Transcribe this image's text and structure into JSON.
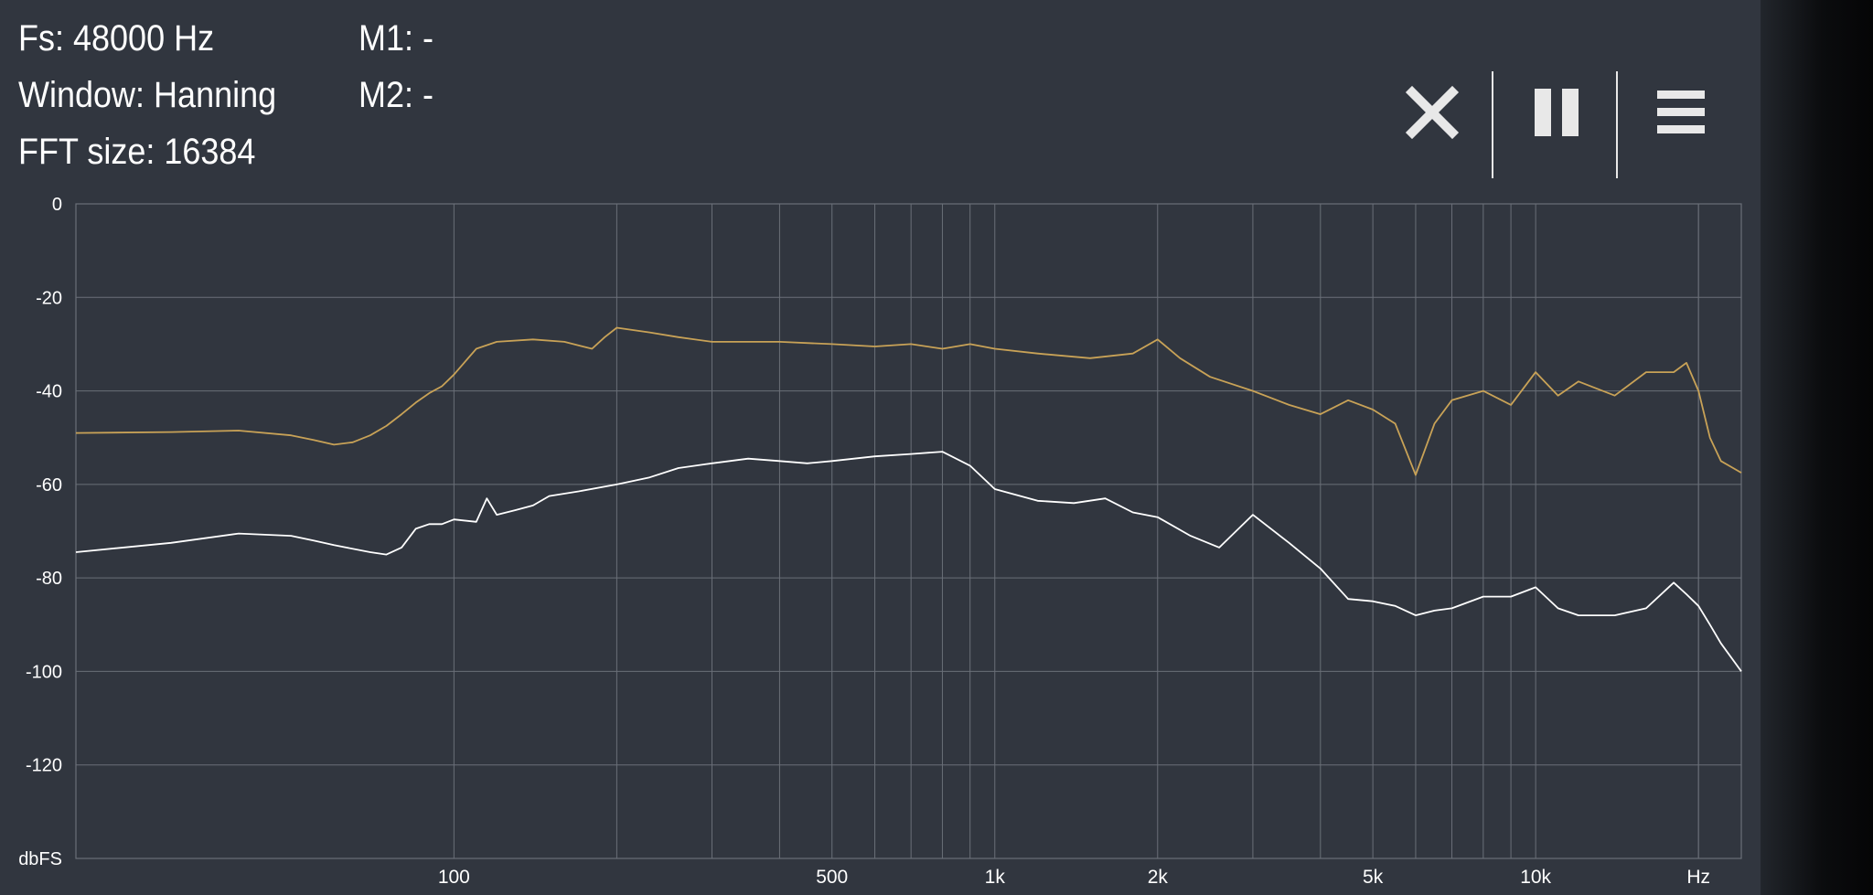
{
  "header": {
    "fs": "Fs: 48000 Hz",
    "window": "Window: Hanning",
    "fft_size": "FFT size: 16384",
    "m1": "M1: -",
    "m2": "M2: -"
  },
  "toolbar": {
    "close_icon": "close-icon",
    "pause_icon": "pause-icon",
    "menu_icon": "menu-icon"
  },
  "colors": {
    "background": "#31363f",
    "grid": "#6a6f78",
    "series_peak": "#c8a257",
    "series_current": "#ffffff"
  },
  "chart_data": {
    "type": "line",
    "x_scale": "log",
    "xlim": [
      20,
      24000
    ],
    "ylim": [
      -140,
      0
    ],
    "ylabel": "dbFS",
    "y_ticks": [
      "0",
      "-20",
      "-40",
      "-60",
      "-80",
      "-100",
      "-120",
      "dbFS"
    ],
    "x_ticks": [
      "100",
      "500",
      "1k",
      "2k",
      "5k",
      "10k",
      "Hz"
    ],
    "grid": true,
    "series": [
      {
        "x": [
          20,
          30,
          40,
          50,
          55,
          60,
          65,
          70,
          75,
          80,
          85,
          90,
          95,
          100,
          110,
          120,
          140,
          160,
          180,
          190,
          200,
          230,
          260,
          300,
          400,
          500,
          600,
          700,
          800,
          900,
          1000,
          1200,
          1500,
          1800,
          2000,
          2200,
          2500,
          3000,
          3500,
          4000,
          4500,
          5000,
          5500,
          6000,
          6500,
          7000,
          8000,
          9000,
          10000,
          11000,
          12000,
          14000,
          16000,
          18000,
          19000,
          20000,
          21000,
          22000,
          24000
        ],
        "y": [
          -49,
          -48.8,
          -48.5,
          -49.5,
          -50.5,
          -51.5,
          -51,
          -49.5,
          -47.5,
          -45,
          -42.5,
          -40.5,
          -39,
          -36.5,
          -31,
          -29.5,
          -29,
          -29.5,
          -31,
          -28.5,
          -26.5,
          -27.5,
          -28.5,
          -29.5,
          -29.5,
          -30,
          -30.5,
          -30,
          -31,
          -30,
          -31,
          -32,
          -33,
          -32,
          -29,
          -33,
          -37,
          -40,
          -43,
          -45,
          -42,
          -44,
          -47,
          -58,
          -47,
          -42,
          -40,
          -43,
          -36,
          -41,
          -38,
          -41,
          -36,
          -36,
          -34,
          -40,
          -50,
          -55,
          -57.5
        ]
      },
      {
        "x": [
          20,
          30,
          40,
          50,
          55,
          60,
          70,
          75,
          80,
          85,
          90,
          95,
          100,
          110,
          115,
          120,
          130,
          140,
          150,
          170,
          200,
          230,
          260,
          300,
          350,
          400,
          450,
          500,
          600,
          700,
          800,
          900,
          1000,
          1200,
          1400,
          1600,
          1800,
          2000,
          2300,
          2600,
          3000,
          3500,
          4000,
          4500,
          5000,
          5500,
          6000,
          6500,
          7000,
          8000,
          9000,
          10000,
          11000,
          12000,
          14000,
          16000,
          18000,
          19000,
          20000,
          21000,
          22000,
          24000
        ],
        "y": [
          -74.5,
          -72.5,
          -70.5,
          -71,
          -72,
          -73,
          -74.5,
          -75,
          -73.5,
          -69.5,
          -68.5,
          -68.5,
          -67.5,
          -68,
          -63,
          -66.5,
          -65.5,
          -64.5,
          -62.5,
          -61.5,
          -60,
          -58.5,
          -56.5,
          -55.5,
          -54.5,
          -55,
          -55.5,
          -55,
          -54,
          -53.5,
          -53,
          -56,
          -61,
          -63.5,
          -64,
          -63,
          -66,
          -67,
          -71,
          -73.5,
          -66.5,
          -72.5,
          -78,
          -84.5,
          -85,
          -86,
          -88,
          -87,
          -86.5,
          -84,
          -84,
          -82,
          -86.5,
          -88,
          -88,
          -86.5,
          -81,
          -83.5,
          -86,
          -90,
          -94,
          -100
        ]
      }
    ]
  }
}
